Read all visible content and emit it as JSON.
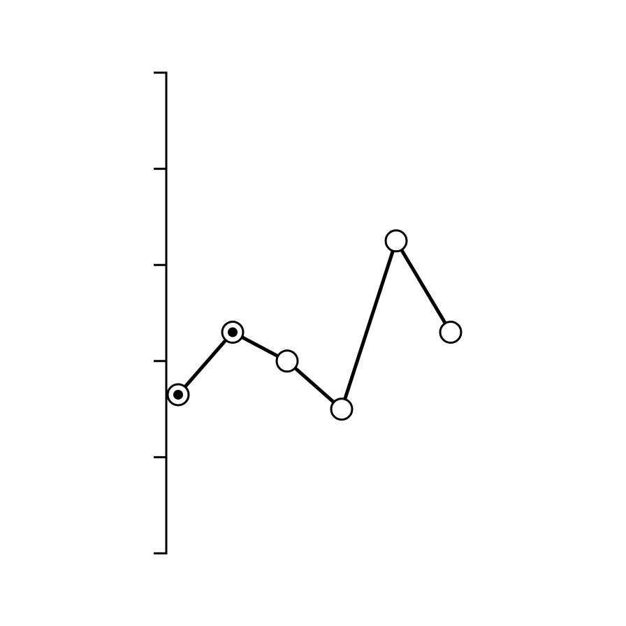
{
  "chart_data": {
    "type": "line",
    "title": "",
    "xlabel": "",
    "ylabel": "",
    "y_axis": {
      "range": [
        0,
        10
      ],
      "ticks": [
        0,
        2,
        4,
        6,
        8,
        10
      ],
      "tick_labels_shown": false
    },
    "x_axis": {
      "shown": false
    },
    "grid": false,
    "legend": "none",
    "series": [
      {
        "x": [
          1,
          2,
          3,
          4,
          5,
          6
        ],
        "y": [
          3.3,
          4.6,
          4.0,
          3.0,
          6.5,
          4.6
        ],
        "marker_style": [
          "dotted-circle",
          "dotted-circle",
          "open-circle",
          "open-circle",
          "open-circle",
          "open-circle"
        ],
        "color": "#000000"
      }
    ]
  }
}
